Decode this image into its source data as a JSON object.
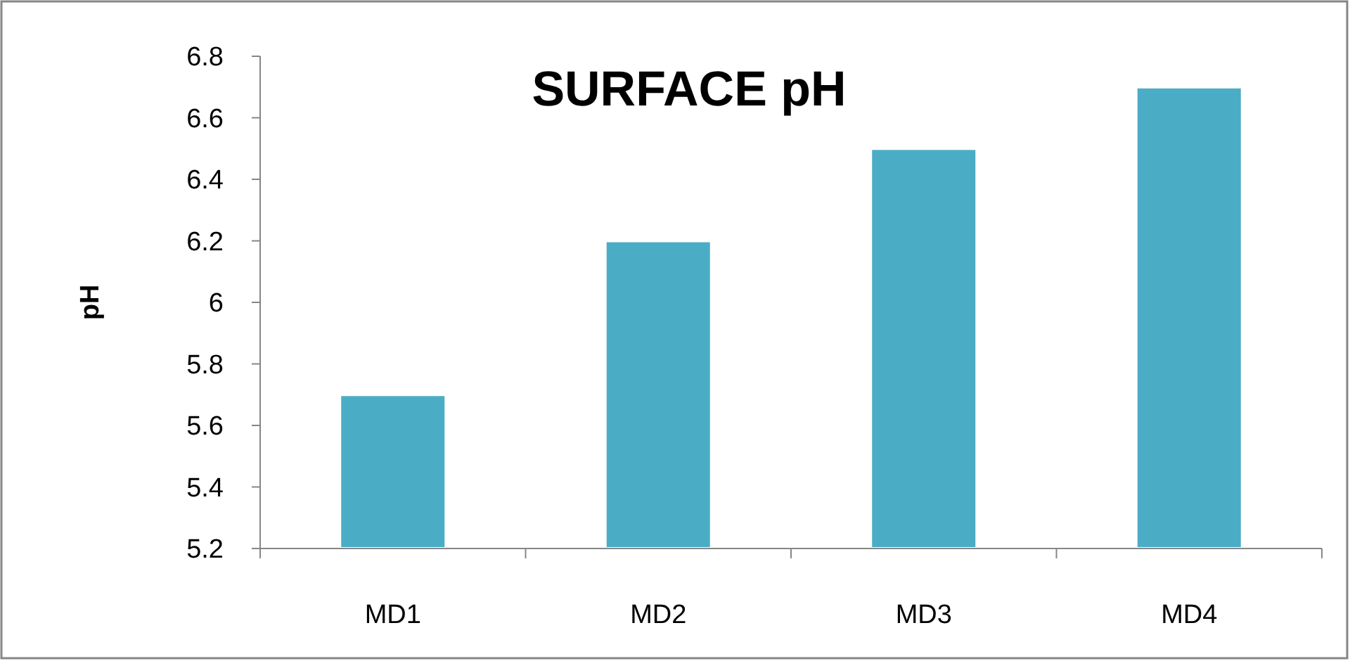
{
  "chart_data": {
    "type": "bar",
    "title": "SURFACE pH",
    "ylabel": "pH",
    "categories": [
      "MD1",
      "MD2",
      "MD3",
      "MD4"
    ],
    "values": [
      5.7,
      6.2,
      6.5,
      6.7
    ],
    "color": "#4bacc6",
    "ylim": [
      5.2,
      6.8
    ],
    "yticks": [
      5.2,
      5.4,
      5.6,
      5.8,
      6,
      6.2,
      6.4,
      6.6,
      6.8
    ],
    "grid": false
  }
}
